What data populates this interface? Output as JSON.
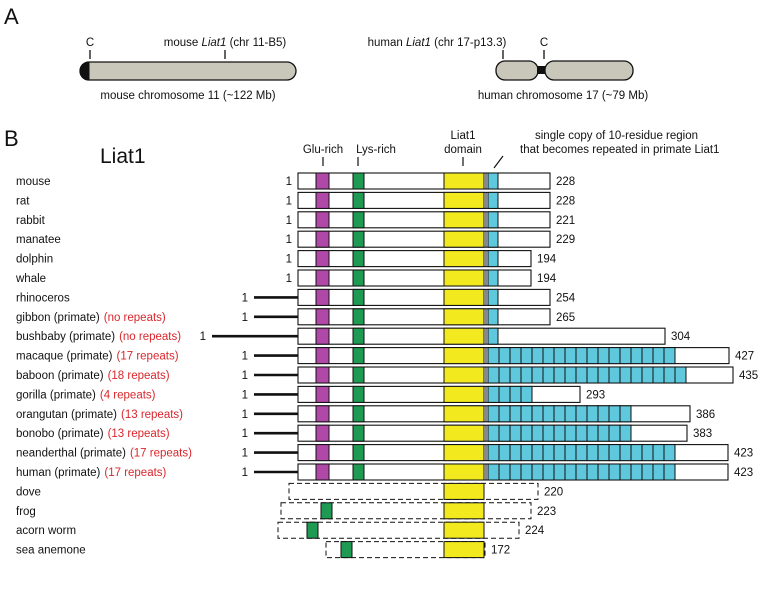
{
  "panel_a": {
    "letter": "A",
    "mouse": {
      "centromere_label": "C",
      "gene_prefix": "mouse ",
      "gene_name": "Liat1",
      "gene_suffix": " (chr 11-B5)",
      "caption": "mouse chromosome 11 (~122 Mb)"
    },
    "human": {
      "centromere_label": "C",
      "gene_prefix": "human ",
      "gene_name": "Liat1",
      "gene_suffix": " (chr 17-p13.3)",
      "caption": "human chromosome 17 (~79 Mb)"
    }
  },
  "panel_b": {
    "letter": "B",
    "title": "Liat1",
    "headers": {
      "glu": "Glu-rich",
      "lys": "Lys-rich",
      "liat_line1": "Liat1",
      "liat_line2": "domain",
      "repeat_line1": "single copy of 10-residue region",
      "repeat_line2": "that becomes repeated in primate Liat1"
    },
    "colors": {
      "glu": "#b048a8",
      "lys": "#1e9a52",
      "liat": "#f2ea1f",
      "repeat": "#5fc8dc",
      "repeat_label": "#d9262b",
      "chromosome": "#c8c7b9"
    },
    "species": [
      {
        "name": "mouse",
        "note": "",
        "start": "1",
        "length": "228",
        "repeats": 1
      },
      {
        "name": "rat",
        "note": "",
        "start": "1",
        "length": "228",
        "repeats": 1
      },
      {
        "name": "rabbit",
        "note": "",
        "start": "1",
        "length": "221",
        "repeats": 1
      },
      {
        "name": "manatee",
        "note": "",
        "start": "1",
        "length": "229",
        "repeats": 1
      },
      {
        "name": "dolphin",
        "note": "",
        "start": "1",
        "length": "194",
        "repeats": 1
      },
      {
        "name": "whale",
        "note": "",
        "start": "1",
        "length": "194",
        "repeats": 1
      },
      {
        "name": "rhinoceros",
        "note": "",
        "start": "1",
        "length": "254",
        "repeats": 1
      },
      {
        "name": "gibbon (primate)",
        "note": "(no repeats)",
        "start": "1",
        "length": "265",
        "repeats": 1
      },
      {
        "name": "bushbaby (primate)",
        "note": "(no repeats)",
        "start": "1",
        "length": "304",
        "repeats": 1
      },
      {
        "name": "macaque (primate)",
        "note": "(17 repeats)",
        "start": "1",
        "length": "427",
        "repeats": 17
      },
      {
        "name": "baboon (primate)",
        "note": "(18 repeats)",
        "start": "1",
        "length": "435",
        "repeats": 18
      },
      {
        "name": "gorilla (primate)",
        "note": "(4 repeats)",
        "start": "1",
        "length": "293",
        "repeats": 4
      },
      {
        "name": "orangutan (primate)",
        "note": "(13 repeats)",
        "start": "1",
        "length": "386",
        "repeats": 13
      },
      {
        "name": "bonobo (primate)",
        "note": "(13 repeats)",
        "start": "1",
        "length": "383",
        "repeats": 13
      },
      {
        "name": "neanderthal (primate)",
        "note": "(17 repeats)",
        "start": "1",
        "length": "423",
        "repeats": 17
      },
      {
        "name": "human (primate)",
        "note": "(17 repeats)",
        "start": "1",
        "length": "423",
        "repeats": 17
      },
      {
        "name": "dove",
        "note": "",
        "start": "",
        "length": "220",
        "repeats": 0
      },
      {
        "name": "frog",
        "note": "",
        "start": "",
        "length": "223",
        "repeats": 0
      },
      {
        "name": "acorn worm",
        "note": "",
        "start": "",
        "length": "224",
        "repeats": 0
      },
      {
        "name": "sea anemone",
        "note": "",
        "start": "",
        "length": "172",
        "repeats": 0
      }
    ]
  }
}
